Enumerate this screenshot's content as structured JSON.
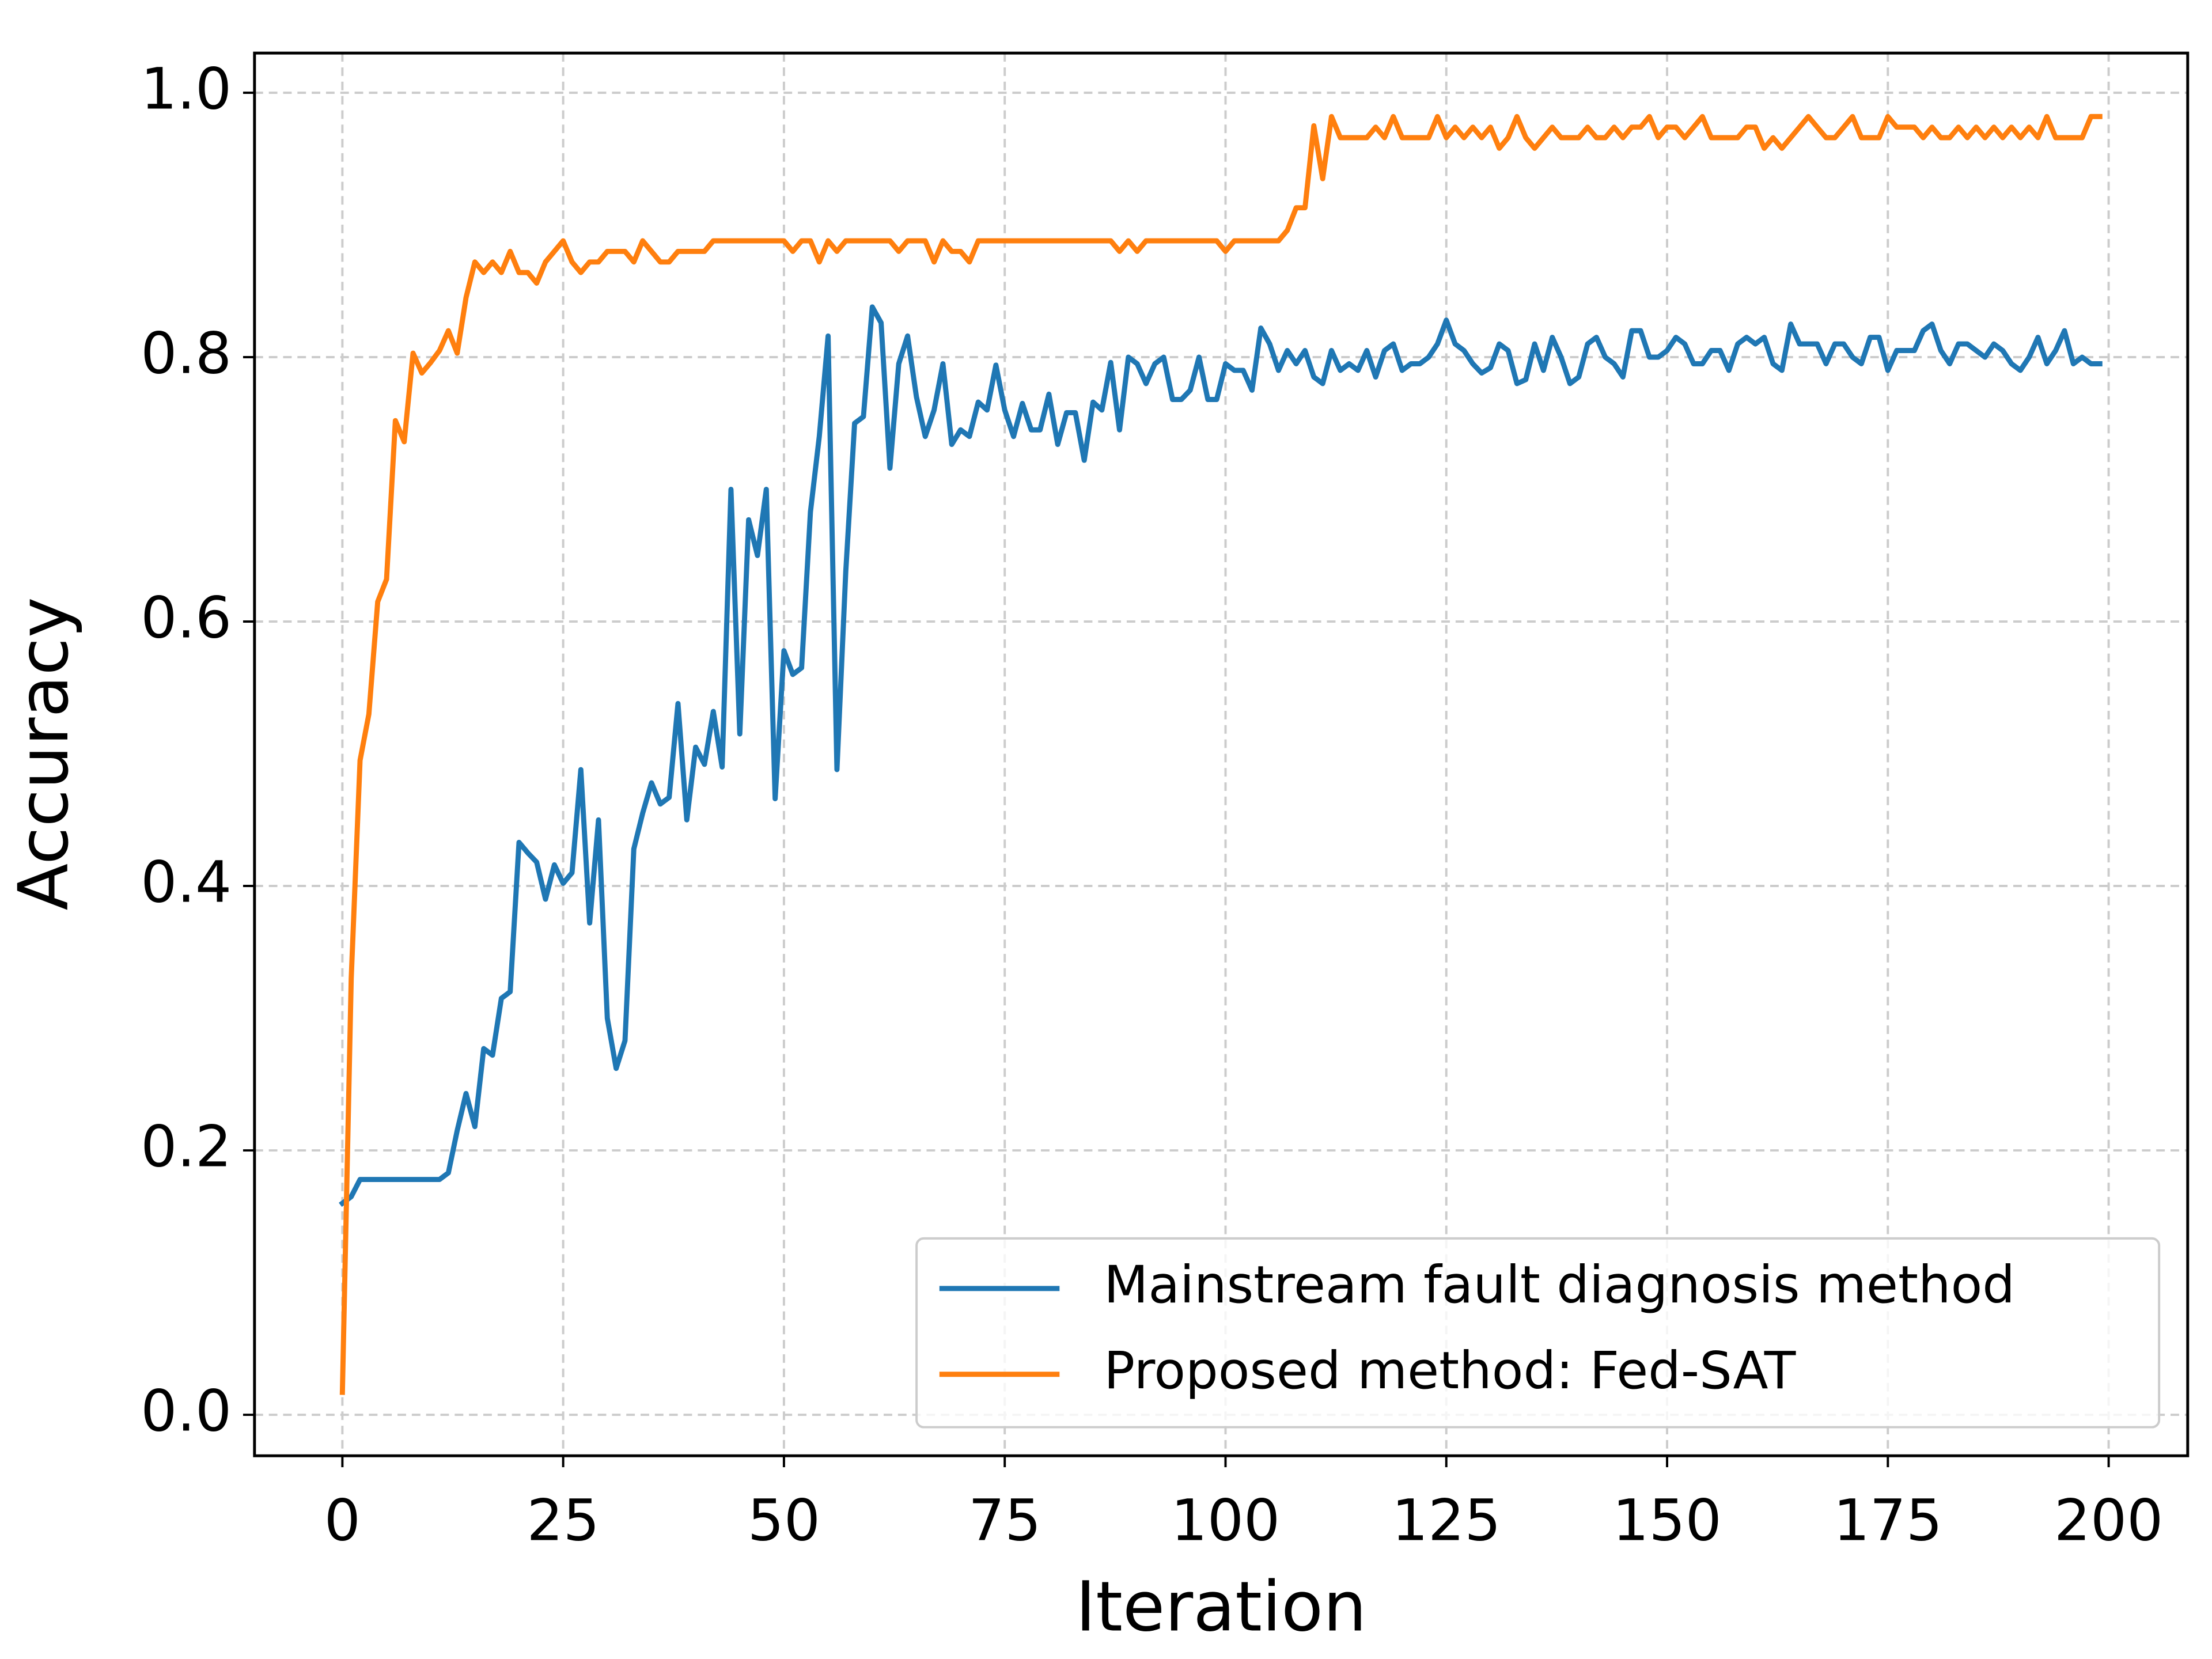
{
  "chart_data": {
    "type": "line",
    "xlabel": "Iteration",
    "ylabel": "Accuracy",
    "x": [
      0,
      1,
      2,
      3,
      4,
      5,
      6,
      7,
      8,
      9,
      10,
      11,
      12,
      13,
      14,
      15,
      16,
      17,
      18,
      19,
      20,
      21,
      22,
      23,
      24,
      25,
      26,
      27,
      28,
      29,
      30,
      31,
      32,
      33,
      34,
      35,
      36,
      37,
      38,
      39,
      40,
      41,
      42,
      43,
      44,
      45,
      46,
      47,
      48,
      49,
      50,
      51,
      52,
      53,
      54,
      55,
      56,
      57,
      58,
      59,
      60,
      61,
      62,
      63,
      64,
      65,
      66,
      67,
      68,
      69,
      70,
      71,
      72,
      73,
      74,
      75,
      76,
      77,
      78,
      79,
      80,
      81,
      82,
      83,
      84,
      85,
      86,
      87,
      88,
      89,
      90,
      91,
      92,
      93,
      94,
      95,
      96,
      97,
      98,
      99,
      100,
      101,
      102,
      103,
      104,
      105,
      106,
      107,
      108,
      109,
      110,
      111,
      112,
      113,
      114,
      115,
      116,
      117,
      118,
      119,
      120,
      121,
      122,
      123,
      124,
      125,
      126,
      127,
      128,
      129,
      130,
      131,
      132,
      133,
      134,
      135,
      136,
      137,
      138,
      139,
      140,
      141,
      142,
      143,
      144,
      145,
      146,
      147,
      148,
      149,
      150,
      151,
      152,
      153,
      154,
      155,
      156,
      157,
      158,
      159,
      160,
      161,
      162,
      163,
      164,
      165,
      166,
      167,
      168,
      169,
      170,
      171,
      172,
      173,
      174,
      175,
      176,
      177,
      178,
      179,
      180,
      181,
      182,
      183,
      184,
      185,
      186,
      187,
      188,
      189,
      190,
      191,
      192,
      193,
      194,
      195,
      196,
      197,
      198,
      199
    ],
    "series": [
      {
        "name": "Mainstream fault diagnosis method",
        "color": "#1f77b4",
        "values": [
          0.16,
          0.165,
          0.178,
          0.178,
          0.178,
          0.178,
          0.178,
          0.178,
          0.178,
          0.178,
          0.178,
          0.178,
          0.183,
          0.215,
          0.243,
          0.218,
          0.277,
          0.272,
          0.315,
          0.32,
          0.433,
          0.425,
          0.418,
          0.39,
          0.416,
          0.402,
          0.41,
          0.488,
          0.372,
          0.45,
          0.3,
          0.262,
          0.283,
          0.428,
          0.455,
          0.478,
          0.462,
          0.467,
          0.538,
          0.45,
          0.505,
          0.492,
          0.532,
          0.49,
          0.7,
          0.515,
          0.677,
          0.65,
          0.7,
          0.466,
          0.578,
          0.56,
          0.565,
          0.683,
          0.74,
          0.816,
          0.488,
          0.638,
          0.75,
          0.755,
          0.838,
          0.826,
          0.716,
          0.795,
          0.816,
          0.77,
          0.74,
          0.76,
          0.795,
          0.734,
          0.745,
          0.74,
          0.766,
          0.76,
          0.794,
          0.76,
          0.74,
          0.765,
          0.745,
          0.745,
          0.772,
          0.734,
          0.758,
          0.758,
          0.722,
          0.766,
          0.76,
          0.796,
          0.745,
          0.8,
          0.795,
          0.78,
          0.795,
          0.8,
          0.768,
          0.768,
          0.775,
          0.8,
          0.768,
          0.768,
          0.795,
          0.79,
          0.79,
          0.775,
          0.822,
          0.81,
          0.79,
          0.805,
          0.795,
          0.805,
          0.785,
          0.78,
          0.805,
          0.79,
          0.795,
          0.79,
          0.805,
          0.785,
          0.805,
          0.81,
          0.79,
          0.795,
          0.795,
          0.8,
          0.81,
          0.828,
          0.81,
          0.805,
          0.795,
          0.788,
          0.792,
          0.81,
          0.805,
          0.78,
          0.783,
          0.81,
          0.79,
          0.815,
          0.8,
          0.78,
          0.785,
          0.81,
          0.815,
          0.8,
          0.795,
          0.785,
          0.82,
          0.82,
          0.8,
          0.8,
          0.805,
          0.815,
          0.81,
          0.795,
          0.795,
          0.805,
          0.805,
          0.79,
          0.81,
          0.815,
          0.81,
          0.815,
          0.795,
          0.79,
          0.825,
          0.81,
          0.81,
          0.81,
          0.795,
          0.81,
          0.81,
          0.8,
          0.795,
          0.815,
          0.815,
          0.79,
          0.805,
          0.805,
          0.805,
          0.82,
          0.825,
          0.805,
          0.795,
          0.81,
          0.81,
          0.805,
          0.8,
          0.81,
          0.805,
          0.795,
          0.79,
          0.8,
          0.815,
          0.795,
          0.805,
          0.82,
          0.795,
          0.8,
          0.795,
          0.795
        ]
      },
      {
        "name": "Proposed method: Fed-SAT",
        "color": "#ff7f0e",
        "values": [
          0.017,
          0.33,
          0.495,
          0.53,
          0.615,
          0.632,
          0.752,
          0.736,
          0.803,
          0.788,
          0.796,
          0.805,
          0.82,
          0.803,
          0.845,
          0.872,
          0.864,
          0.872,
          0.864,
          0.88,
          0.864,
          0.864,
          0.856,
          0.872,
          0.88,
          0.888,
          0.872,
          0.864,
          0.872,
          0.872,
          0.88,
          0.88,
          0.88,
          0.872,
          0.888,
          0.88,
          0.872,
          0.872,
          0.88,
          0.88,
          0.88,
          0.88,
          0.888,
          0.888,
          0.888,
          0.888,
          0.888,
          0.888,
          0.888,
          0.888,
          0.888,
          0.88,
          0.888,
          0.888,
          0.872,
          0.888,
          0.88,
          0.888,
          0.888,
          0.888,
          0.888,
          0.888,
          0.888,
          0.88,
          0.888,
          0.888,
          0.888,
          0.872,
          0.888,
          0.88,
          0.88,
          0.872,
          0.888,
          0.888,
          0.888,
          0.888,
          0.888,
          0.888,
          0.888,
          0.888,
          0.888,
          0.888,
          0.888,
          0.888,
          0.888,
          0.888,
          0.888,
          0.888,
          0.88,
          0.888,
          0.88,
          0.888,
          0.888,
          0.888,
          0.888,
          0.888,
          0.888,
          0.888,
          0.888,
          0.888,
          0.88,
          0.888,
          0.888,
          0.888,
          0.888,
          0.888,
          0.888,
          0.896,
          0.913,
          0.913,
          0.975,
          0.935,
          0.982,
          0.966,
          0.966,
          0.966,
          0.966,
          0.974,
          0.966,
          0.982,
          0.966,
          0.966,
          0.966,
          0.966,
          0.982,
          0.966,
          0.974,
          0.966,
          0.974,
          0.966,
          0.974,
          0.958,
          0.966,
          0.982,
          0.966,
          0.958,
          0.966,
          0.974,
          0.966,
          0.966,
          0.966,
          0.974,
          0.966,
          0.966,
          0.974,
          0.966,
          0.974,
          0.974,
          0.982,
          0.966,
          0.974,
          0.974,
          0.966,
          0.974,
          0.982,
          0.966,
          0.966,
          0.966,
          0.966,
          0.974,
          0.974,
          0.958,
          0.966,
          0.958,
          0.966,
          0.974,
          0.982,
          0.974,
          0.966,
          0.966,
          0.974,
          0.982,
          0.966,
          0.966,
          0.966,
          0.982,
          0.974,
          0.974,
          0.974,
          0.966,
          0.974,
          0.966,
          0.966,
          0.974,
          0.966,
          0.974,
          0.966,
          0.974,
          0.966,
          0.974,
          0.966,
          0.974,
          0.966,
          0.982,
          0.966,
          0.966,
          0.966,
          0.966,
          0.982,
          0.982
        ]
      }
    ],
    "xlim": [
      -9.95,
      208.95
    ],
    "xticks": [
      0,
      25,
      50,
      75,
      100,
      125,
      150,
      175,
      200
    ],
    "ylim": [
      -0.031,
      1.03
    ],
    "yticks": [
      {
        "value": 0,
        "label": "0.0"
      },
      0.2,
      0.4,
      0.6,
      0.8,
      {
        "value": 1,
        "label": "1.0"
      }
    ],
    "grid": true,
    "legend": "lower right"
  }
}
